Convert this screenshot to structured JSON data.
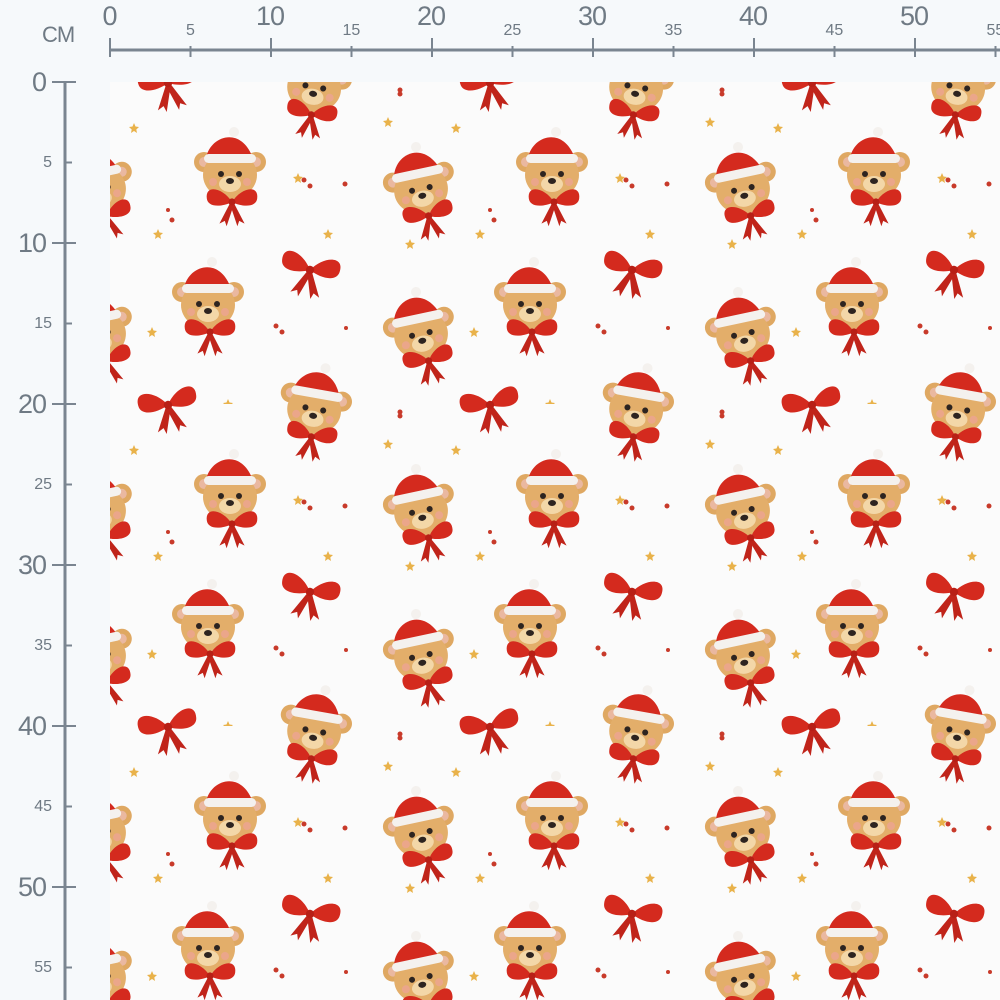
{
  "ruler": {
    "unit": "CM",
    "horizontal_labels": [
      "0",
      "5",
      "10",
      "15",
      "20",
      "25",
      "30",
      "35",
      "40",
      "45",
      "50",
      "55"
    ],
    "vertical_labels": [
      "0",
      "5",
      "10",
      "15",
      "20",
      "25",
      "30",
      "35",
      "40",
      "45",
      "50",
      "55"
    ],
    "line_color": "#7a8590"
  },
  "fabric": {
    "background": "#fbfbfb",
    "motifs": [
      "teddy-bear-santa-hat",
      "red-bow",
      "gold-star",
      "red-dot"
    ],
    "colors": {
      "red": "#d42a1e",
      "fur": "#dfa862",
      "star": "#e9b24a"
    },
    "repeat_cm": 20
  }
}
